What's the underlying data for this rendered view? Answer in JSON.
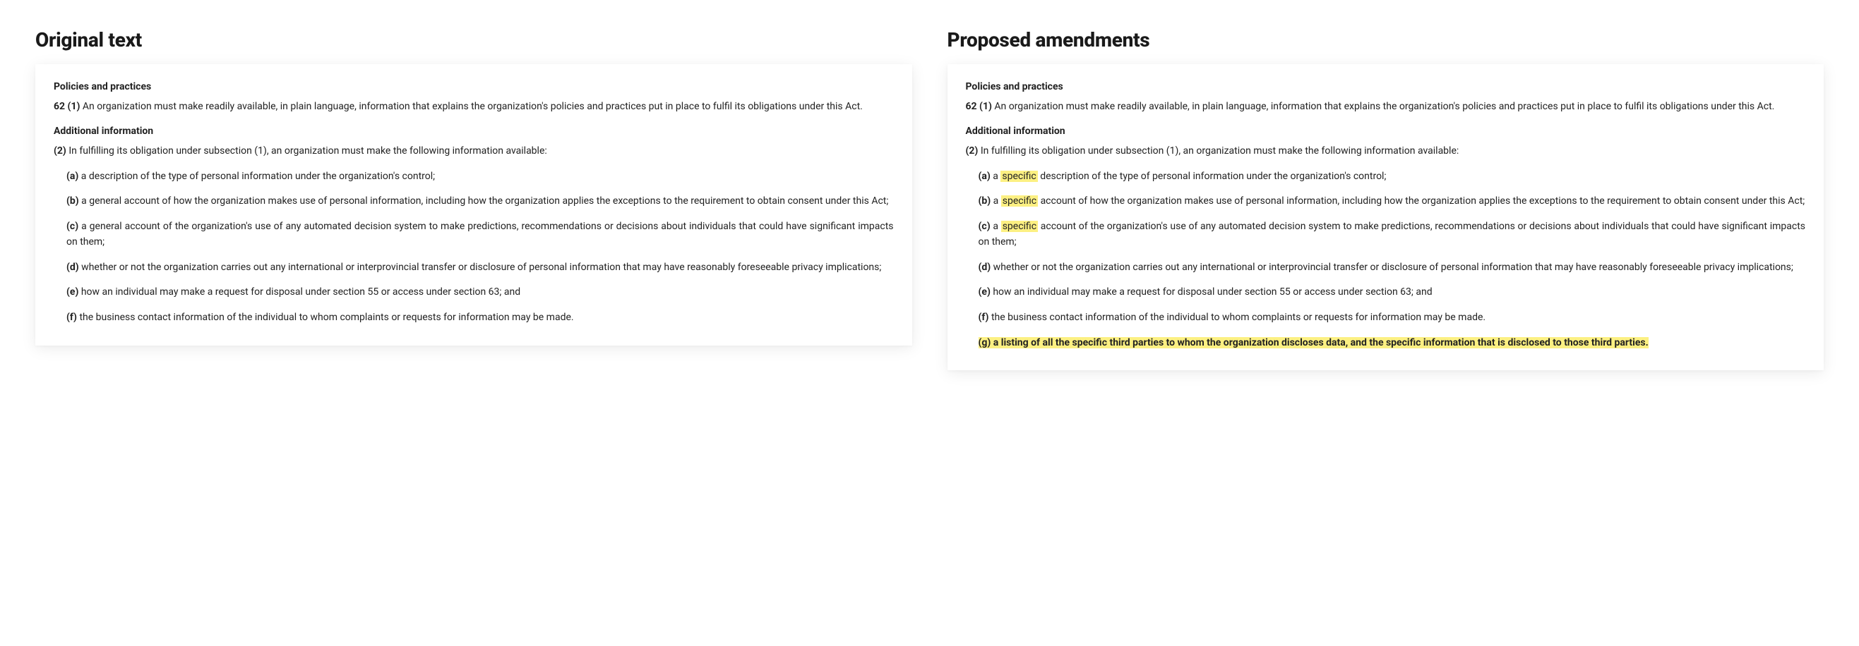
{
  "left": {
    "title": "Original text",
    "section1": {
      "heading": "Policies and practices",
      "num": "62 (1)",
      "text": " An organization must make readily available, in plain language, information that explains the organization's policies and practices put in place to fulfil its obligations under this Act."
    },
    "section2": {
      "heading": "Additional information",
      "num": "(2)",
      "intro": " In fulfilling its obligation under subsection (1), an organization must make the following information available:",
      "items": [
        {
          "label": "(a)",
          "text": " a description of the type of personal information under the organization's control;"
        },
        {
          "label": "(b)",
          "text": " a general account of how the organization makes use of personal information, including how the organization applies the exceptions to the requirement to obtain consent under this Act;"
        },
        {
          "label": "(c)",
          "text": " a general account of the organization's use of any automated decision system to make predictions, recommendations or decisions about individuals that could have significant impacts on them;"
        },
        {
          "label": "(d)",
          "text": " whether or not the organization carries out any international or interprovincial transfer or disclosure of personal information that may have reasonably foreseeable privacy implications;"
        },
        {
          "label": "(e)",
          "text": " how an individual may make a request for disposal under section 55 or access under section 63; and"
        },
        {
          "label": "(f)",
          "text": " the business contact information of the individual to whom complaints or requests for information may be made."
        }
      ]
    }
  },
  "right": {
    "title": "Proposed amendments",
    "section1": {
      "heading": "Policies and practices",
      "num": "62 (1)",
      "text": " An organization must make readily available, in plain language, information that explains the organization's policies and practices put in place to fulfil its obligations under this Act."
    },
    "section2": {
      "heading": "Additional information",
      "num": "(2)",
      "intro": " In fulfilling its obligation under subsection (1), an organization must make the following information available:",
      "items": [
        {
          "label": "(a)",
          "pre": " a ",
          "hl": "specific",
          "post": " description of the type of personal information under the organization's control;"
        },
        {
          "label": "(b)",
          "pre": " a ",
          "hl": "specific",
          "post": " account of how the organization makes use of personal information, including how the organization applies the exceptions to the requirement to obtain consent under this Act;"
        },
        {
          "label": "(c)",
          "pre": " a ",
          "hl": "specific",
          "post": " account of the organization's use of any automated decision system to make predictions, recommendations or decisions about individuals that could have significant impacts on them;"
        },
        {
          "label": "(d)",
          "text": " whether or not the organization carries out any international or interprovincial transfer or disclosure of personal information that may have reasonably foreseeable privacy implications;"
        },
        {
          "label": "(e)",
          "text": " how an individual may make a request for disposal under section 55 or access under section 63; and"
        },
        {
          "label": "(f)",
          "text": " the business contact information of the individual to whom complaints or requests for information may be made."
        },
        {
          "label": "(g)",
          "full_hl": " a listing of all the specific third parties to whom the organization discloses data, and the specific information that is disclosed to those third parties."
        }
      ]
    }
  },
  "style": {
    "highlight_color": "#fcf082",
    "card_bg": "#ffffff",
    "text_color": "#222222",
    "title_fontsize": 28,
    "body_fontsize": 14
  }
}
